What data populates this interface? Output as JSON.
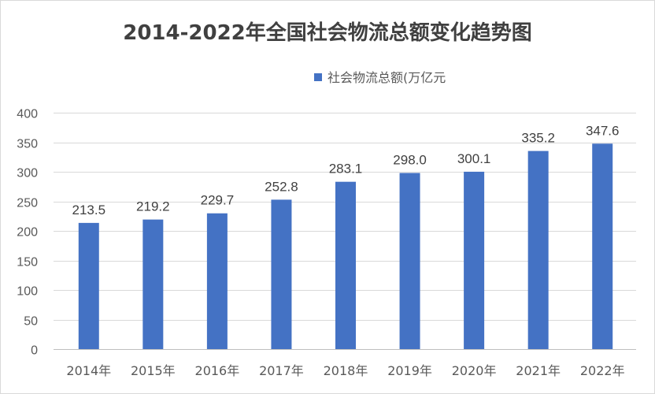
{
  "chart_data": {
    "type": "bar",
    "title": "2014-2022年全国社会物流总额变化趋势图",
    "categories": [
      "2014年",
      "2015年",
      "2016年",
      "2017年",
      "2018年",
      "2019年",
      "2020年",
      "2021年",
      "2022年"
    ],
    "series": [
      {
        "name": "社会物流总额(万亿元",
        "values": [
          213.5,
          219.2,
          229.7,
          252.8,
          283.1,
          298.0,
          300.1,
          335.2,
          347.6
        ]
      }
    ],
    "ylim": [
      0,
      400
    ],
    "yticks": [
      0,
      50,
      100,
      150,
      200,
      250,
      300,
      350,
      400
    ],
    "grid": true,
    "legend_position": "top",
    "data_labels": true,
    "colors": {
      "bar": "#4472C4",
      "grid": "#d9d9d9",
      "text": "#595959"
    }
  }
}
